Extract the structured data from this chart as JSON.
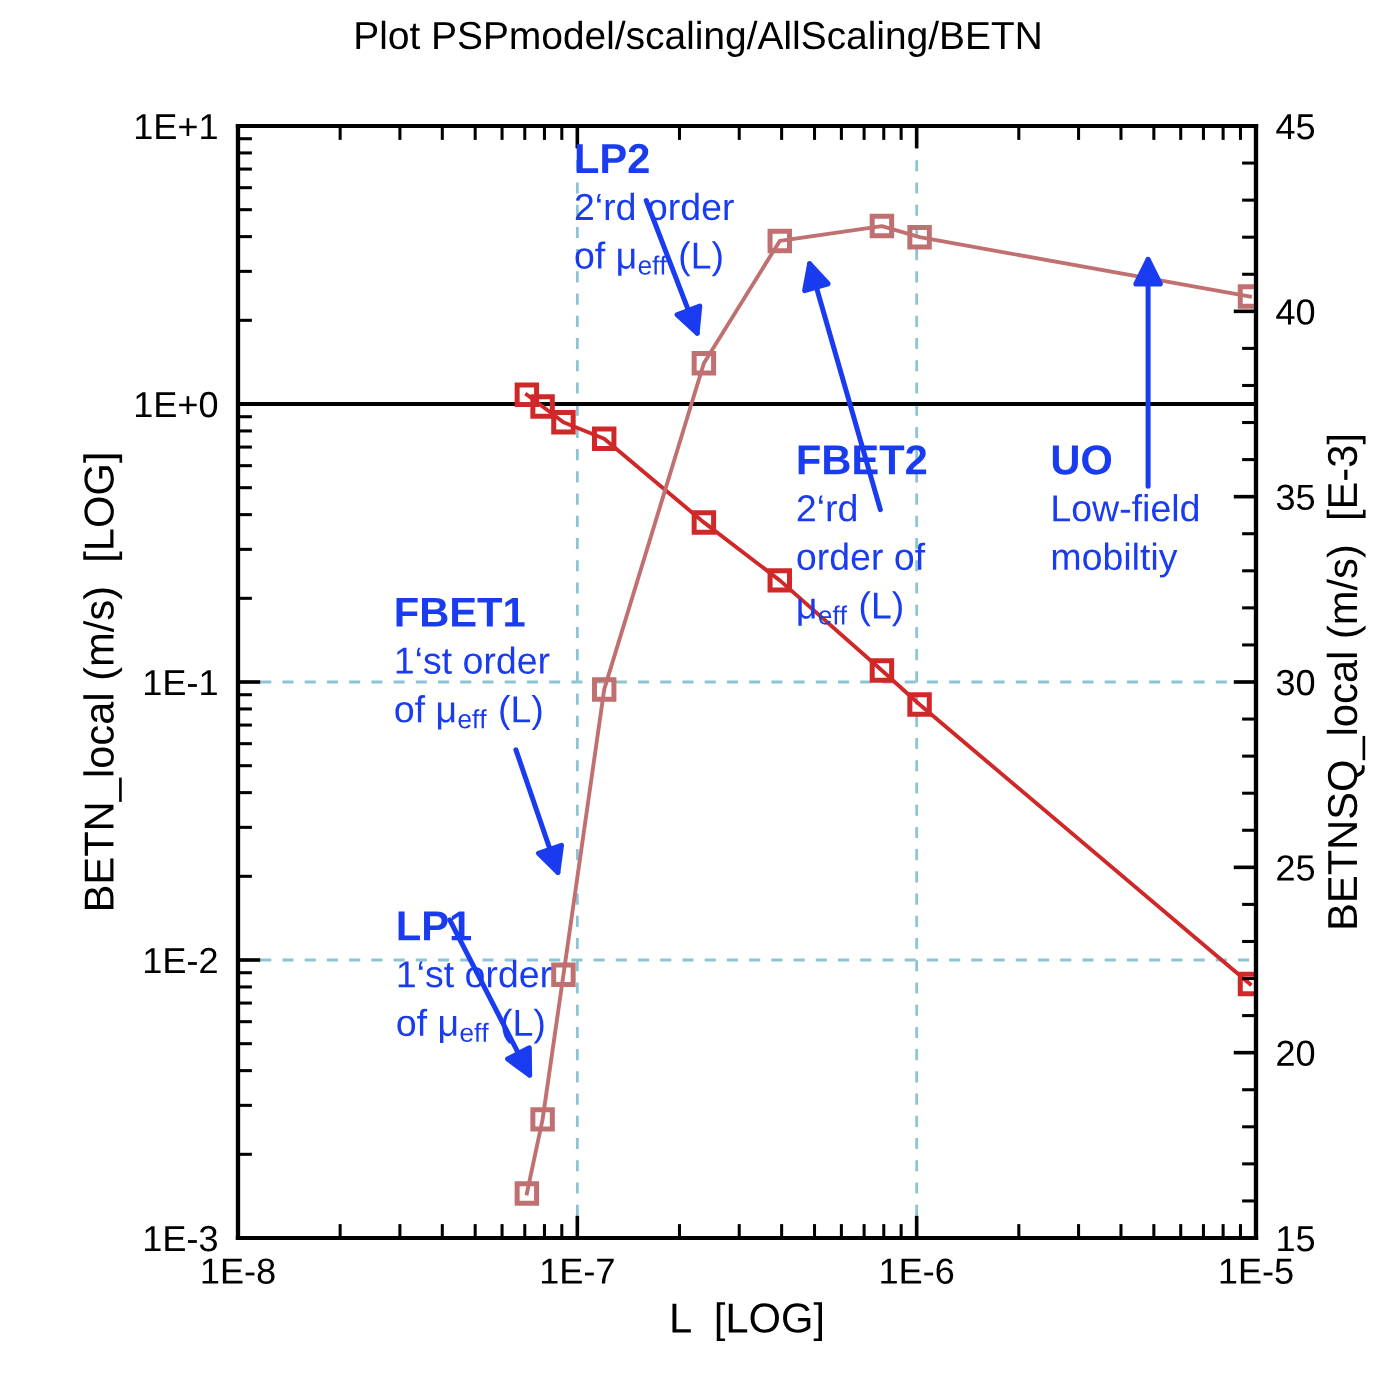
{
  "chart_data": {
    "type": "line",
    "title": "Plot PSPmodel/scaling/AllScaling/BETN",
    "xlabel": "L  [LOG]",
    "ylabel": "BETN_local (m/s)  [LOG]",
    "y2label": "BETNSQ_local (m/s)  [E-3]",
    "log": "xy",
    "xlim": [
      1e-08,
      1e-05
    ],
    "ylim": [
      0.001,
      10
    ],
    "y2lim": [
      15,
      45
    ],
    "xticks": [
      {
        "value": 1e-08,
        "label": "1E-8"
      },
      {
        "value": 1e-07,
        "label": "1E-7"
      },
      {
        "value": 1e-06,
        "label": "1E-6"
      },
      {
        "value": 1e-05,
        "label": "1E-5"
      }
    ],
    "yticks": [
      {
        "value": 0.001,
        "label": "1E-3"
      },
      {
        "value": 0.01,
        "label": "1E-2"
      },
      {
        "value": 0.1,
        "label": "1E-1"
      },
      {
        "value": 1,
        "label": "1E+0"
      },
      {
        "value": 10,
        "label": "1E+1"
      }
    ],
    "y2ticks": [
      15,
      20,
      25,
      30,
      35,
      40,
      45
    ],
    "grid": true,
    "marker": "square",
    "line_style": "solid",
    "series": [
      {
        "color": "#d02828",
        "x": [
          7.1e-08,
          7.9e-08,
          9.1e-08,
          1.2e-07,
          2.36e-07,
          3.95e-07,
          7.9e-07,
          1.02e-06,
          9.6e-06
        ],
        "values": [
          1.08,
          0.98,
          0.86,
          0.75,
          0.375,
          0.232,
          0.11,
          0.083,
          0.0082
        ]
      },
      {
        "color": "#c07070",
        "axis": "y2",
        "x": [
          7.1e-08,
          7.9e-08,
          9.1e-08,
          1.2e-07,
          2.36e-07,
          3.95e-07,
          7.9e-07,
          1.02e-06,
          9.6e-06
        ],
        "values": [
          16.2,
          18.2,
          22.1,
          29.8,
          38.6,
          41.9,
          42.3,
          42.0,
          40.4
        ]
      }
    ],
    "ref_lines": [
      {
        "axis": "y",
        "value": 1,
        "color": "#000000",
        "line_style": "solid"
      }
    ],
    "annotations": [
      "LP2\n2‘rd order\nof μ$_{eff}$ (L)",
      "FBET1\n1‘st order\nof μ$_{eff}$ (L)",
      "LP1\n1‘st order\nof μ$_{eff}$ (L)",
      "FBET2\n2‘rd\norder of\nμ$_{eff}$ (L)",
      "UO\nLow-field\nmobiltiy"
    ]
  }
}
